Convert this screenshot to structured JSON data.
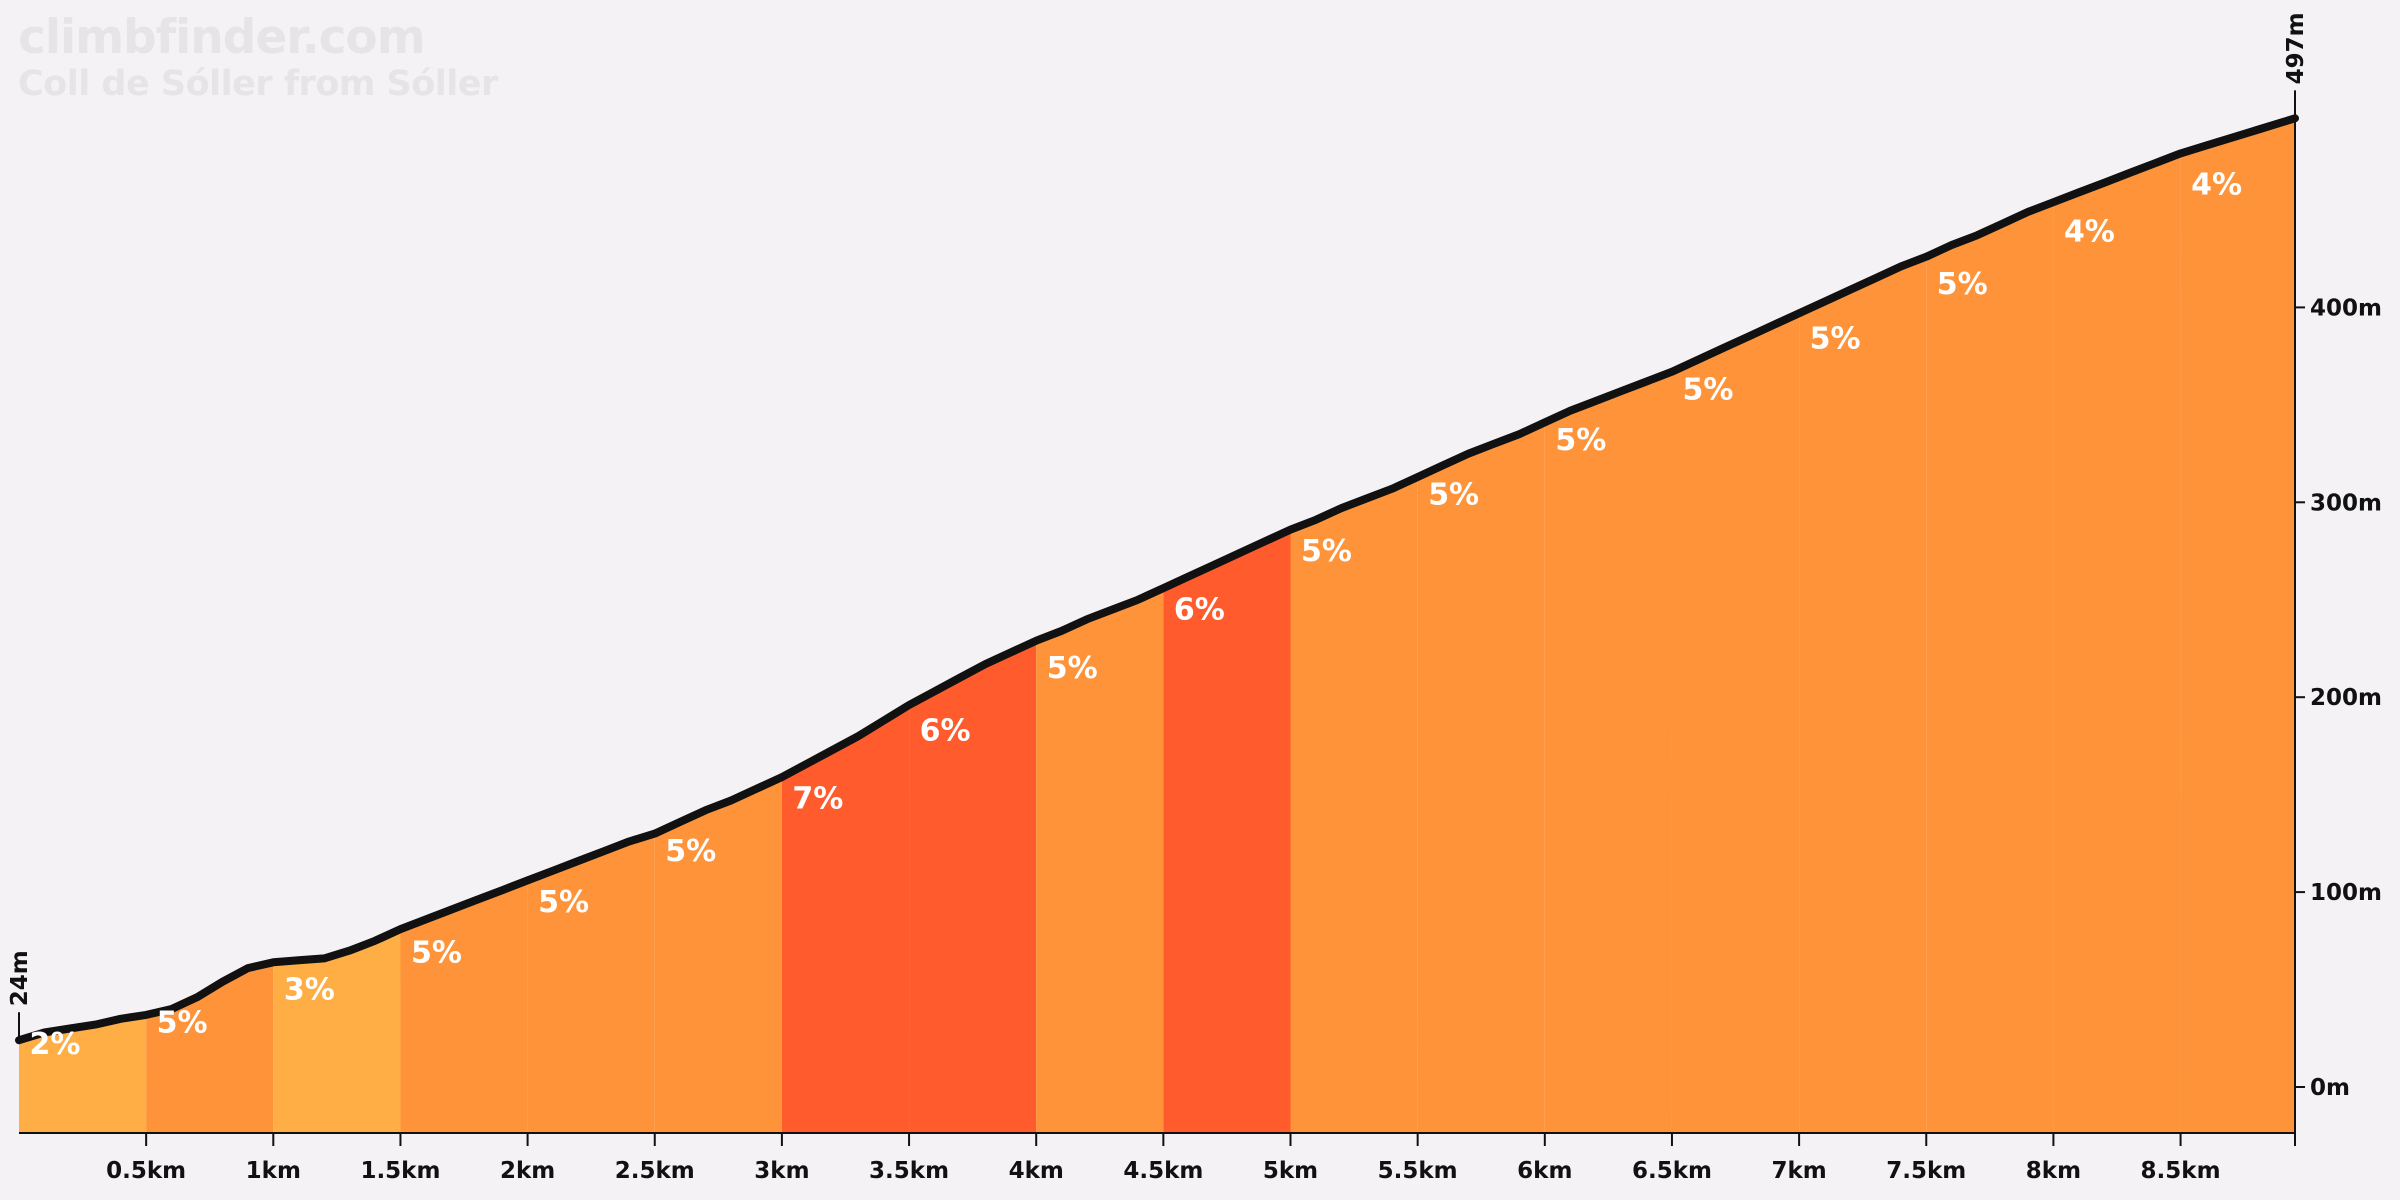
{
  "branding": {
    "site": "climbfinder.com",
    "climb_name": "Coll de Sóller from Sóller"
  },
  "colors": {
    "background": "#f4f2f5",
    "profile_line": "#111111",
    "grade_2_3": "#ffae45",
    "grade_4_5": "#ff9339",
    "grade_6_7": "#ff5b2c",
    "label_text": "#ffffff",
    "axis": "#111111"
  },
  "chart_data": {
    "type": "area",
    "title": "Coll de Sóller from Sóller",
    "xlabel": "",
    "ylabel": "",
    "x_unit": "km",
    "y_unit": "m",
    "xlim": [
      0,
      8.95
    ],
    "ylim": [
      -20,
      497
    ],
    "start_label": "24m",
    "summit_label": "497m",
    "x_ticks": [
      {
        "v": 0.5,
        "label": "0.5km"
      },
      {
        "v": 1,
        "label": "1km"
      },
      {
        "v": 1.5,
        "label": "1.5km"
      },
      {
        "v": 2,
        "label": "2km"
      },
      {
        "v": 2.5,
        "label": "2.5km"
      },
      {
        "v": 3,
        "label": "3km"
      },
      {
        "v": 3.5,
        "label": "3.5km"
      },
      {
        "v": 4,
        "label": "4km"
      },
      {
        "v": 4.5,
        "label": "4.5km"
      },
      {
        "v": 5,
        "label": "5km"
      },
      {
        "v": 5.5,
        "label": "5.5km"
      },
      {
        "v": 6,
        "label": "6km"
      },
      {
        "v": 6.5,
        "label": "6.5km"
      },
      {
        "v": 7,
        "label": "7km"
      },
      {
        "v": 7.5,
        "label": "7.5km"
      },
      {
        "v": 8,
        "label": "8km"
      },
      {
        "v": 8.5,
        "label": "8.5km"
      }
    ],
    "y_ticks": [
      {
        "v": 0,
        "label": "0m"
      },
      {
        "v": 100,
        "label": "100m"
      },
      {
        "v": 200,
        "label": "200m"
      },
      {
        "v": 300,
        "label": "300m"
      },
      {
        "v": 400,
        "label": "400m"
      }
    ],
    "profile": [
      [
        0,
        24
      ],
      [
        0.1,
        28
      ],
      [
        0.2,
        30
      ],
      [
        0.3,
        32
      ],
      [
        0.4,
        35
      ],
      [
        0.5,
        37
      ],
      [
        0.6,
        40
      ],
      [
        0.7,
        46
      ],
      [
        0.8,
        54
      ],
      [
        0.9,
        61
      ],
      [
        1.0,
        64
      ],
      [
        1.1,
        65
      ],
      [
        1.2,
        66
      ],
      [
        1.3,
        70
      ],
      [
        1.4,
        75
      ],
      [
        1.5,
        81
      ],
      [
        1.6,
        86
      ],
      [
        1.7,
        91
      ],
      [
        1.8,
        96
      ],
      [
        1.9,
        101
      ],
      [
        2.0,
        106
      ],
      [
        2.1,
        111
      ],
      [
        2.2,
        116
      ],
      [
        2.3,
        121
      ],
      [
        2.4,
        126
      ],
      [
        2.5,
        130
      ],
      [
        2.6,
        136
      ],
      [
        2.7,
        142
      ],
      [
        2.8,
        147
      ],
      [
        2.9,
        153
      ],
      [
        3.0,
        159
      ],
      [
        3.1,
        166
      ],
      [
        3.2,
        173
      ],
      [
        3.3,
        180
      ],
      [
        3.4,
        188
      ],
      [
        3.5,
        196
      ],
      [
        3.6,
        203
      ],
      [
        3.7,
        210
      ],
      [
        3.8,
        217
      ],
      [
        3.9,
        223
      ],
      [
        4.0,
        229
      ],
      [
        4.1,
        234
      ],
      [
        4.2,
        240
      ],
      [
        4.3,
        245
      ],
      [
        4.4,
        250
      ],
      [
        4.5,
        256
      ],
      [
        4.6,
        262
      ],
      [
        4.7,
        268
      ],
      [
        4.8,
        274
      ],
      [
        4.9,
        280
      ],
      [
        5.0,
        286
      ],
      [
        5.1,
        291
      ],
      [
        5.2,
        297
      ],
      [
        5.3,
        302
      ],
      [
        5.4,
        307
      ],
      [
        5.5,
        313
      ],
      [
        5.6,
        319
      ],
      [
        5.7,
        325
      ],
      [
        5.8,
        330
      ],
      [
        5.9,
        335
      ],
      [
        6.0,
        341
      ],
      [
        6.1,
        347
      ],
      [
        6.2,
        352
      ],
      [
        6.3,
        357
      ],
      [
        6.4,
        362
      ],
      [
        6.5,
        367
      ],
      [
        6.6,
        373
      ],
      [
        6.7,
        379
      ],
      [
        6.8,
        385
      ],
      [
        6.9,
        391
      ],
      [
        7.0,
        397
      ],
      [
        7.1,
        403
      ],
      [
        7.2,
        409
      ],
      [
        7.3,
        415
      ],
      [
        7.4,
        421
      ],
      [
        7.5,
        426
      ],
      [
        7.6,
        432
      ],
      [
        7.7,
        437
      ],
      [
        7.8,
        443
      ],
      [
        7.9,
        449
      ],
      [
        8.0,
        454
      ],
      [
        8.1,
        459
      ],
      [
        8.2,
        464
      ],
      [
        8.3,
        469
      ],
      [
        8.4,
        474
      ],
      [
        8.5,
        479
      ],
      [
        8.6,
        483
      ],
      [
        8.7,
        487
      ],
      [
        8.8,
        491
      ],
      [
        8.9,
        495
      ],
      [
        8.95,
        497
      ]
    ],
    "segments": [
      {
        "start": 0.0,
        "end": 0.5,
        "grade": "2%",
        "label_elev": 23
      },
      {
        "start": 0.5,
        "end": 1.0,
        "grade": "5%",
        "label_elev": 34
      },
      {
        "start": 1.0,
        "end": 1.5,
        "grade": "3%",
        "label_elev": 51
      },
      {
        "start": 1.5,
        "end": 2.0,
        "grade": "5%",
        "label_elev": 70
      },
      {
        "start": 2.0,
        "end": 2.5,
        "grade": "5%",
        "label_elev": 96
      },
      {
        "start": 2.5,
        "end": 3.0,
        "grade": "5%",
        "label_elev": 122
      },
      {
        "start": 3.0,
        "end": 3.5,
        "grade": "7%",
        "label_elev": 149
      },
      {
        "start": 3.5,
        "end": 4.0,
        "grade": "6%",
        "label_elev": 184
      },
      {
        "start": 4.0,
        "end": 4.5,
        "grade": "5%",
        "label_elev": 216
      },
      {
        "start": 4.5,
        "end": 5.0,
        "grade": "6%",
        "label_elev": 246
      },
      {
        "start": 5.0,
        "end": 5.5,
        "grade": "5%",
        "label_elev": 276
      },
      {
        "start": 5.5,
        "end": 6.0,
        "grade": "5%",
        "label_elev": 305
      },
      {
        "start": 6.0,
        "end": 6.5,
        "grade": "5%",
        "label_elev": 333
      },
      {
        "start": 6.5,
        "end": 7.0,
        "grade": "5%",
        "label_elev": 359
      },
      {
        "start": 7.0,
        "end": 7.5,
        "grade": "5%",
        "label_elev": 385
      },
      {
        "start": 7.5,
        "end": 8.0,
        "grade": "5%",
        "label_elev": 413
      },
      {
        "start": 8.0,
        "end": 8.5,
        "grade": "4%",
        "label_elev": 440
      },
      {
        "start": 8.5,
        "end": 8.95,
        "grade": "4%",
        "label_elev": 464
      }
    ]
  }
}
